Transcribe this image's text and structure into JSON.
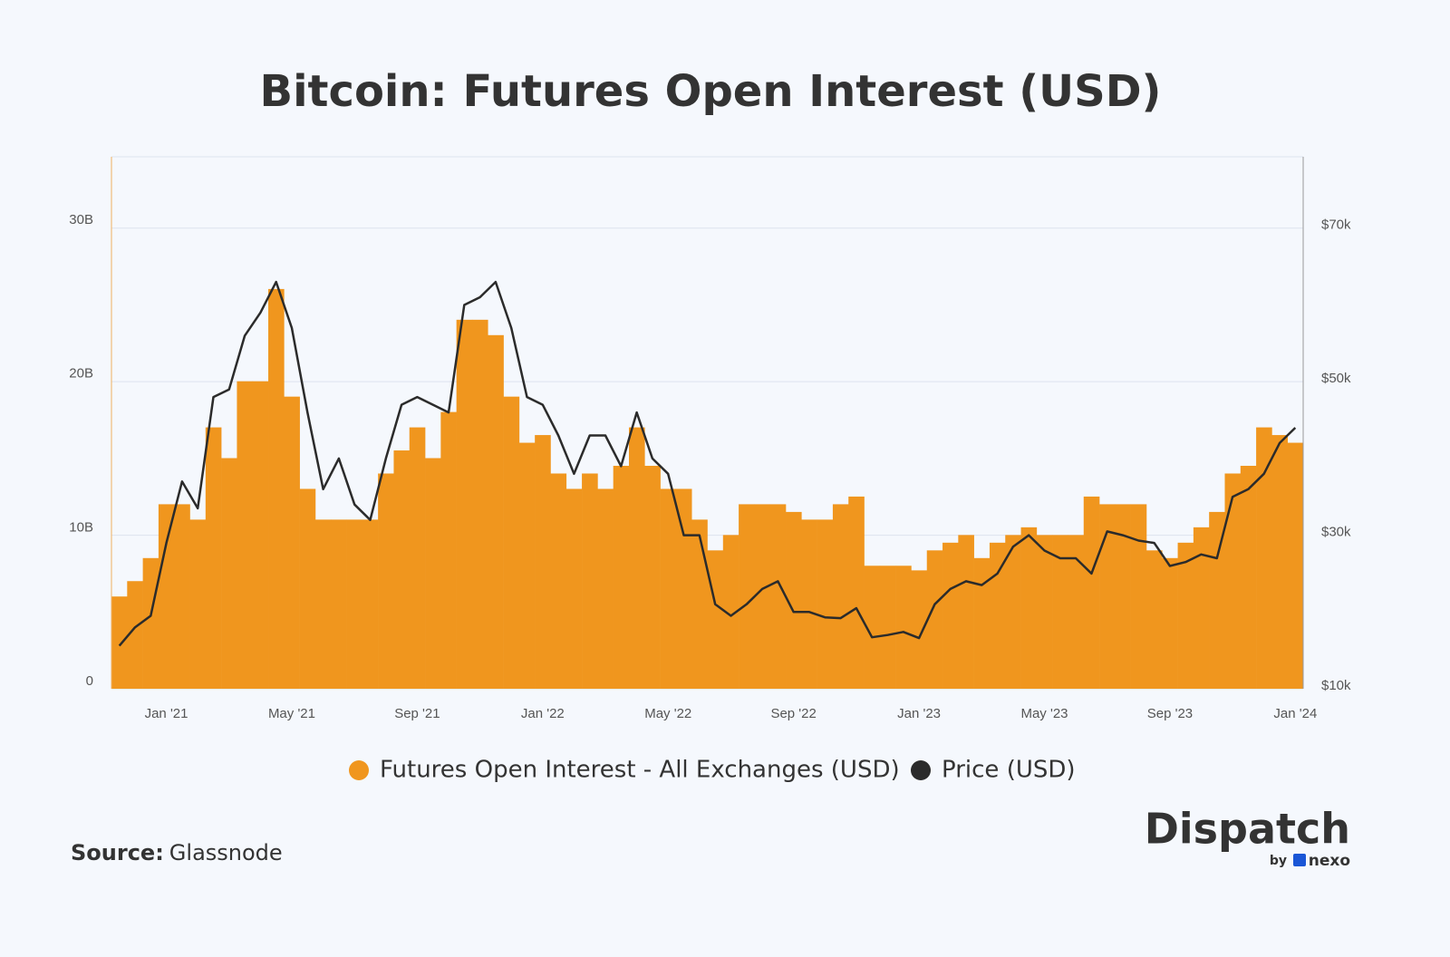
{
  "chart_data": {
    "type": "combo",
    "title": "Bitcoin: Futures Open Interest (USD)",
    "categories": [
      null,
      null,
      null,
      "Jan '21",
      null,
      null,
      null,
      null,
      null,
      null,
      null,
      "May '21",
      null,
      null,
      null,
      null,
      null,
      null,
      null,
      "Sep '21",
      null,
      null,
      null,
      null,
      null,
      null,
      null,
      "Jan '22",
      null,
      null,
      null,
      null,
      null,
      null,
      null,
      "May '22",
      null,
      null,
      null,
      null,
      null,
      null,
      null,
      "Sep '22",
      null,
      null,
      null,
      null,
      null,
      null,
      null,
      "Jan '23",
      null,
      null,
      null,
      null,
      null,
      null,
      null,
      "May '23",
      null,
      null,
      null,
      null,
      null,
      null,
      null,
      "Sep '23",
      null,
      null,
      null,
      null,
      null,
      null,
      null,
      "Jan '24"
    ],
    "series": [
      {
        "name": "Futures Open Interest - All Exchanges (USD)",
        "type": "bar",
        "color": "#f0961e",
        "values": [
          6,
          7,
          8.5,
          12,
          12,
          11,
          17,
          15,
          20,
          20,
          26,
          19,
          13,
          11,
          11,
          11,
          11,
          14,
          15.5,
          17,
          15,
          18,
          24,
          24,
          23,
          19,
          16,
          16.5,
          14,
          13,
          14,
          13,
          14.5,
          17,
          14.5,
          13,
          13,
          11,
          9,
          10,
          12,
          12,
          12,
          11.5,
          11,
          11,
          12,
          12.5,
          8,
          8,
          8,
          7.7,
          9,
          9.5,
          10,
          8.5,
          9.5,
          10,
          10.5,
          10,
          10,
          10,
          12.5,
          12,
          12,
          12,
          9,
          8.5,
          9.5,
          10.5,
          11.5,
          14,
          14.5,
          17,
          16.5,
          16
        ]
      },
      {
        "name": "Price (USD)",
        "type": "line",
        "axis": "y2",
        "color": "#2b2b2b",
        "values": [
          15.6,
          18,
          19.5,
          29,
          37,
          33.5,
          48,
          49,
          56,
          59,
          63,
          57,
          46,
          36,
          40,
          34,
          32,
          40,
          47,
          48,
          47,
          46,
          60,
          61,
          63,
          57,
          48,
          47,
          43,
          38,
          43,
          43,
          39,
          46,
          40,
          38,
          30,
          30,
          21,
          19.5,
          21,
          23,
          24,
          20,
          20,
          19.3,
          19.2,
          20.5,
          16.7,
          17,
          17.4,
          16.6,
          21,
          23,
          24,
          23.5,
          25,
          28.5,
          30,
          28,
          27,
          27,
          25,
          30.5,
          30,
          29.3,
          29,
          26,
          26.5,
          27.5,
          27,
          35,
          36,
          38,
          42,
          44
        ]
      }
    ],
    "ylim": [
      0,
      34.6
    ],
    "yticks": [
      {
        "value": 0,
        "label": "0"
      },
      {
        "value": 10,
        "label": "10B"
      },
      {
        "value": 20,
        "label": "20B"
      },
      {
        "value": 30,
        "label": "30B"
      }
    ],
    "y2lim": [
      10,
      79.3
    ],
    "y2ticks": [
      {
        "value": 10,
        "label": "$10k"
      },
      {
        "value": 30,
        "label": "$30k"
      },
      {
        "value": 50,
        "label": "$50k"
      },
      {
        "value": 70,
        "label": "$70k"
      }
    ],
    "grid": true,
    "source_label": "Source:",
    "source": "Glassnode"
  },
  "branding": {
    "name": "Dispatch",
    "by": "by",
    "partner": "nexo"
  }
}
